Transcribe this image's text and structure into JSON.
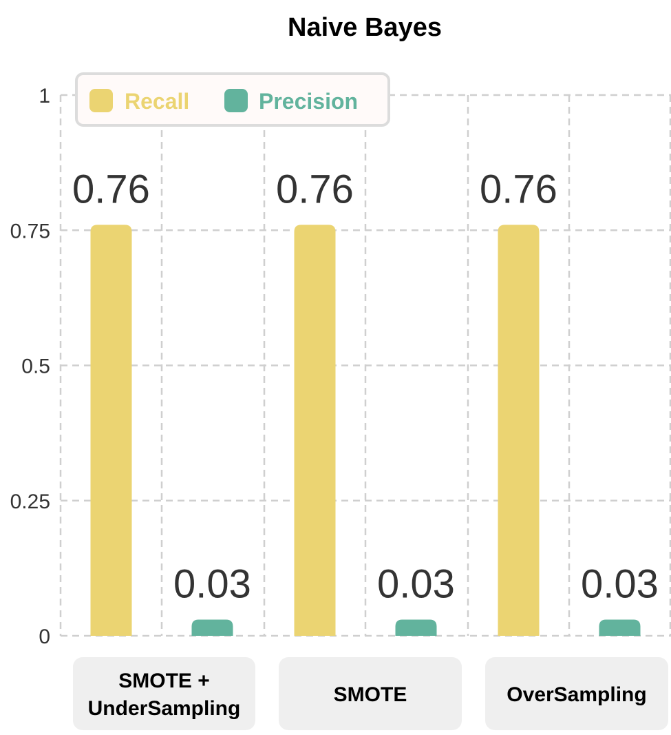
{
  "chart_data": {
    "type": "bar",
    "title": "Naive Bayes",
    "categories": [
      "SMOTE + UnderSampling",
      "SMOTE",
      "OverSampling"
    ],
    "category_lines": [
      [
        "SMOTE +",
        "UnderSampling"
      ],
      [
        "SMOTE"
      ],
      [
        "OverSampling"
      ]
    ],
    "series": [
      {
        "name": "Recall",
        "color": "#EBD472",
        "values": [
          0.76,
          0.76,
          0.76
        ]
      },
      {
        "name": "Precision",
        "color": "#62B39D",
        "values": [
          0.03,
          0.03,
          0.03
        ]
      }
    ],
    "ylim": [
      0,
      1
    ],
    "yticks": [
      "0",
      "0.25",
      "0.5",
      "0.75",
      "1"
    ],
    "ytick_values": [
      0,
      0.25,
      0.5,
      0.75,
      1
    ],
    "grid": true,
    "legend_position": "top-left"
  }
}
